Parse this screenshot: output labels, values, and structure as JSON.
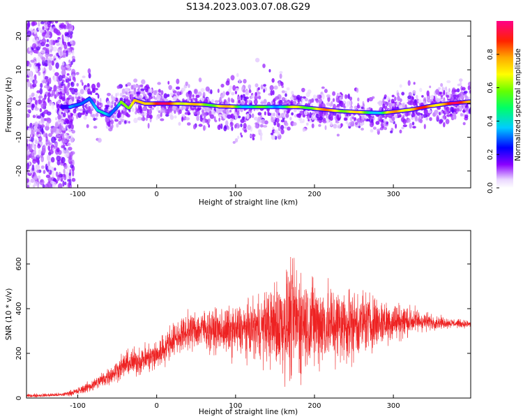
{
  "title": "S134.2023.003.07.08.G29",
  "chart_data": [
    {
      "type": "heatmap",
      "xlabel": "Height of straight line (km)",
      "ylabel": "Frequency (Hz)",
      "xlim": [
        -165,
        398
      ],
      "ylim": [
        -25,
        24.5
      ],
      "x_ticks": [
        -100,
        0,
        100,
        200,
        300
      ],
      "x_tick_labels": [
        "-100",
        "0",
        "100",
        "200",
        "300"
      ],
      "y_ticks": [
        -20,
        -10,
        0,
        10,
        20
      ],
      "y_tick_labels": [
        "-20",
        "-10",
        "0",
        "10",
        "20"
      ],
      "colorbar": {
        "label": "Normalized spectral amplitude",
        "range": [
          0,
          1
        ],
        "ticks": [
          0.0,
          0.2,
          0.4,
          0.6,
          0.8
        ],
        "tick_labels": [
          "0.0",
          "0.2",
          "0.4",
          "0.6",
          "0.8"
        ],
        "colormap": "rainbow"
      },
      "ridge": [
        {
          "x": -110,
          "f": -1.0,
          "a": 0.35
        },
        {
          "x": -95,
          "f": 0.0,
          "a": 0.45
        },
        {
          "x": -85,
          "f": 1.5,
          "a": 0.45
        },
        {
          "x": -75,
          "f": -2.0,
          "a": 0.4
        },
        {
          "x": -60,
          "f": -3.5,
          "a": 0.45
        },
        {
          "x": -50,
          "f": -1.0,
          "a": 0.5
        },
        {
          "x": -45,
          "f": 0.5,
          "a": 0.8
        },
        {
          "x": -35,
          "f": -1.5,
          "a": 0.6
        },
        {
          "x": -28,
          "f": 1.0,
          "a": 0.75
        },
        {
          "x": -15,
          "f": 0.0,
          "a": 0.95
        },
        {
          "x": 0,
          "f": 0.0,
          "a": 1.0
        },
        {
          "x": 30,
          "f": 0.0,
          "a": 0.9
        },
        {
          "x": 60,
          "f": -0.3,
          "a": 0.7
        },
        {
          "x": 80,
          "f": -0.8,
          "a": 0.85
        },
        {
          "x": 110,
          "f": -1.0,
          "a": 0.6
        },
        {
          "x": 150,
          "f": -1.0,
          "a": 0.55
        },
        {
          "x": 180,
          "f": -1.0,
          "a": 0.7
        },
        {
          "x": 200,
          "f": -1.5,
          "a": 0.8
        },
        {
          "x": 230,
          "f": -2.2,
          "a": 0.85
        },
        {
          "x": 260,
          "f": -2.6,
          "a": 0.7
        },
        {
          "x": 285,
          "f": -2.8,
          "a": 0.55
        },
        {
          "x": 305,
          "f": -2.3,
          "a": 0.9
        },
        {
          "x": 325,
          "f": -1.7,
          "a": 0.9
        },
        {
          "x": 345,
          "f": -0.8,
          "a": 0.9
        },
        {
          "x": 370,
          "f": 0.0,
          "a": 0.95
        },
        {
          "x": 398,
          "f": 0.6,
          "a": 1.0
        }
      ]
    },
    {
      "type": "line",
      "xlabel": "Height of straight line (km)",
      "ylabel": "SNR (10 * v/v)",
      "xlim": [
        -165,
        398
      ],
      "ylim": [
        0,
        750
      ],
      "x_ticks": [
        -100,
        0,
        100,
        200,
        300
      ],
      "x_tick_labels": [
        "-100",
        "0",
        "100",
        "200",
        "300"
      ],
      "y_ticks": [
        0,
        200,
        400,
        600
      ],
      "y_tick_labels": [
        "0",
        "200",
        "400",
        "600"
      ],
      "series": [
        {
          "color": "#ee2222",
          "envelope": [
            {
              "x": -165,
              "mean": 10,
              "spread": 10
            },
            {
              "x": -120,
              "mean": 15,
              "spread": 10
            },
            {
              "x": -100,
              "mean": 30,
              "spread": 20
            },
            {
              "x": -80,
              "mean": 60,
              "spread": 35
            },
            {
              "x": -60,
              "mean": 100,
              "spread": 50
            },
            {
              "x": -40,
              "mean": 150,
              "spread": 70
            },
            {
              "x": -20,
              "mean": 170,
              "spread": 80
            },
            {
              "x": 0,
              "mean": 190,
              "spread": 90
            },
            {
              "x": 20,
              "mean": 260,
              "spread": 90
            },
            {
              "x": 40,
              "mean": 300,
              "spread": 100
            },
            {
              "x": 60,
              "mean": 310,
              "spread": 110
            },
            {
              "x": 80,
              "mean": 300,
              "spread": 120
            },
            {
              "x": 100,
              "mean": 300,
              "spread": 140
            },
            {
              "x": 120,
              "mean": 310,
              "spread": 150
            },
            {
              "x": 140,
              "mean": 320,
              "spread": 200
            },
            {
              "x": 160,
              "mean": 330,
              "spread": 280
            },
            {
              "x": 175,
              "mean": 350,
              "spread": 330
            },
            {
              "x": 190,
              "mean": 340,
              "spread": 260
            },
            {
              "x": 210,
              "mean": 330,
              "spread": 240
            },
            {
              "x": 230,
              "mean": 330,
              "spread": 220
            },
            {
              "x": 250,
              "mean": 330,
              "spread": 200
            },
            {
              "x": 270,
              "mean": 340,
              "spread": 160
            },
            {
              "x": 290,
              "mean": 340,
              "spread": 130
            },
            {
              "x": 310,
              "mean": 345,
              "spread": 100
            },
            {
              "x": 330,
              "mean": 345,
              "spread": 70
            },
            {
              "x": 350,
              "mean": 340,
              "spread": 40
            },
            {
              "x": 375,
              "mean": 335,
              "spread": 25
            },
            {
              "x": 398,
              "mean": 330,
              "spread": 20
            }
          ]
        }
      ]
    }
  ]
}
